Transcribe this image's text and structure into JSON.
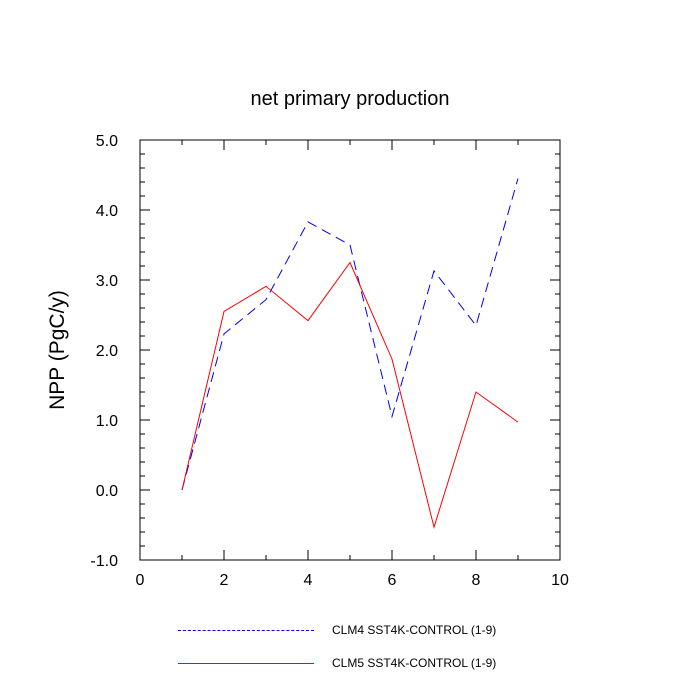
{
  "chart_data": {
    "type": "line",
    "title": "net primary production",
    "xlabel": "",
    "ylabel": "NPP  (PgC/y)",
    "xlim": [
      0,
      10
    ],
    "ylim": [
      -1.0,
      5.0
    ],
    "xticks": [
      "0",
      "2",
      "4",
      "6",
      "8",
      "10"
    ],
    "yticks": [
      "-1.0",
      "0.0",
      "1.0",
      "2.0",
      "3.0",
      "4.0",
      "5.0"
    ],
    "grid": false,
    "legend_position": "bottom",
    "x": [
      1,
      2,
      3,
      4,
      5,
      6,
      7,
      8,
      9
    ],
    "series": [
      {
        "name": "CLM4 SST4K-CONTROL (1-9)",
        "color": "#0000ff",
        "style": "dashed",
        "values": [
          0.0,
          2.23,
          2.72,
          3.83,
          3.5,
          1.05,
          3.13,
          2.35,
          4.45
        ]
      },
      {
        "name": "CLM5 SST4K-CONTROL (1-9)",
        "color": "#ff0000",
        "style": "solid",
        "values": [
          0.0,
          2.55,
          2.91,
          2.42,
          3.25,
          1.87,
          -0.53,
          1.4,
          0.97
        ]
      }
    ]
  }
}
